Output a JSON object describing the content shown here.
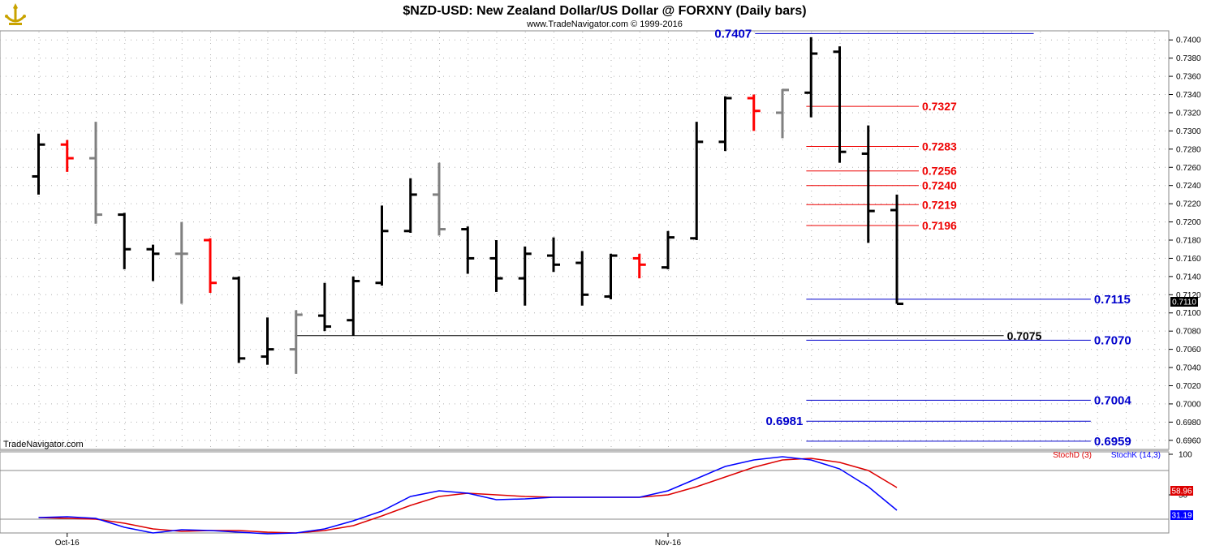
{
  "header": {
    "title": "$NZD-USD:  New Zealand Dollar/US Dollar @ FORXNY  (Daily bars)",
    "copyright": "www.TradeNavigator.com © 1999-2016"
  },
  "watermark": "TradeNavigator.com",
  "colors": {
    "black_bar": "#000000",
    "gray_bar": "#808080",
    "red_bar": "#ff0000",
    "blue_level": "#0000cc",
    "red_level": "#ee0000",
    "grid": "#b0b0b0",
    "stoch_k": "#0000ff",
    "stoch_d": "#dd0000",
    "current_price_bg": "#000000",
    "stoch_d_badge": "#dd0000",
    "stoch_k_badge": "#0000ff"
  },
  "chart_data": {
    "type": "ohlc",
    "y_axis": {
      "min": 0.695,
      "max": 0.741,
      "ticks": [
        "0.6960",
        "0.6980",
        "0.7000",
        "0.7020",
        "0.7040",
        "0.7060",
        "0.7080",
        "0.7100",
        "0.7120",
        "0.7140",
        "0.7160",
        "0.7180",
        "0.7200",
        "0.7220",
        "0.7240",
        "0.7260",
        "0.7280",
        "0.7300",
        "0.7320",
        "0.7340",
        "0.7360",
        "0.7380",
        "0.7400"
      ]
    },
    "x_labels": [
      {
        "label": "Oct-16",
        "bar": 1
      },
      {
        "label": "Nov-16",
        "bar": 22
      }
    ],
    "current_price": "0.7110",
    "bars": [
      {
        "o": 0.725,
        "h": 0.7297,
        "l": 0.723,
        "c": 0.7285,
        "color": "black"
      },
      {
        "o": 0.7285,
        "h": 0.729,
        "l": 0.7255,
        "c": 0.727,
        "color": "red"
      },
      {
        "o": 0.727,
        "h": 0.731,
        "l": 0.7198,
        "c": 0.7208,
        "color": "gray"
      },
      {
        "o": 0.7208,
        "h": 0.721,
        "l": 0.7148,
        "c": 0.717,
        "color": "black"
      },
      {
        "o": 0.717,
        "h": 0.7175,
        "l": 0.7135,
        "c": 0.7165,
        "color": "black"
      },
      {
        "o": 0.7165,
        "h": 0.72,
        "l": 0.711,
        "c": 0.7165,
        "color": "gray"
      },
      {
        "o": 0.718,
        "h": 0.7182,
        "l": 0.7122,
        "c": 0.7133,
        "color": "red"
      },
      {
        "o": 0.7138,
        "h": 0.714,
        "l": 0.7045,
        "c": 0.705,
        "color": "black"
      },
      {
        "o": 0.7052,
        "h": 0.7095,
        "l": 0.7043,
        "c": 0.706,
        "color": "black"
      },
      {
        "o": 0.706,
        "h": 0.7103,
        "l": 0.7033,
        "c": 0.7098,
        "color": "gray"
      },
      {
        "o": 0.7097,
        "h": 0.7133,
        "l": 0.708,
        "c": 0.7085,
        "color": "black"
      },
      {
        "o": 0.7092,
        "h": 0.714,
        "l": 0.7075,
        "c": 0.7135,
        "color": "black"
      },
      {
        "o": 0.7133,
        "h": 0.7218,
        "l": 0.713,
        "c": 0.719,
        "color": "black"
      },
      {
        "o": 0.719,
        "h": 0.7248,
        "l": 0.7188,
        "c": 0.723,
        "color": "black"
      },
      {
        "o": 0.723,
        "h": 0.7265,
        "l": 0.7185,
        "c": 0.7192,
        "color": "gray"
      },
      {
        "o": 0.7192,
        "h": 0.7195,
        "l": 0.7143,
        "c": 0.716,
        "color": "black"
      },
      {
        "o": 0.716,
        "h": 0.718,
        "l": 0.7123,
        "c": 0.7138,
        "color": "black"
      },
      {
        "o": 0.7138,
        "h": 0.7173,
        "l": 0.7108,
        "c": 0.7165,
        "color": "black"
      },
      {
        "o": 0.7163,
        "h": 0.7183,
        "l": 0.7145,
        "c": 0.7153,
        "color": "black"
      },
      {
        "o": 0.7155,
        "h": 0.7168,
        "l": 0.7108,
        "c": 0.712,
        "color": "black"
      },
      {
        "o": 0.7118,
        "h": 0.7165,
        "l": 0.7115,
        "c": 0.7163,
        "color": "black"
      },
      {
        "o": 0.716,
        "h": 0.7165,
        "l": 0.7138,
        "c": 0.7153,
        "color": "red"
      },
      {
        "o": 0.715,
        "h": 0.719,
        "l": 0.7148,
        "c": 0.7183,
        "color": "black"
      },
      {
        "o": 0.7182,
        "h": 0.731,
        "l": 0.718,
        "c": 0.7288,
        "color": "black"
      },
      {
        "o": 0.7288,
        "h": 0.7338,
        "l": 0.7278,
        "c": 0.7336,
        "color": "black"
      },
      {
        "o": 0.7336,
        "h": 0.734,
        "l": 0.73,
        "c": 0.7322,
        "color": "red"
      },
      {
        "o": 0.732,
        "h": 0.7346,
        "l": 0.7292,
        "c": 0.7345,
        "color": "gray"
      },
      {
        "o": 0.7342,
        "h": 0.7403,
        "l": 0.7315,
        "c": 0.7385,
        "color": "black"
      },
      {
        "o": 0.7387,
        "h": 0.7393,
        "l": 0.7265,
        "c": 0.7277,
        "color": "black"
      },
      {
        "o": 0.7275,
        "h": 0.7306,
        "l": 0.7177,
        "c": 0.7212,
        "color": "black"
      },
      {
        "o": 0.7213,
        "h": 0.723,
        "l": 0.711,
        "c": 0.711,
        "color": "black"
      }
    ],
    "levels": [
      {
        "label": "0.7407",
        "value": 0.7407,
        "color": "blue",
        "x1": 0.6235,
        "x2": 0.8536,
        "label_side": "left"
      },
      {
        "label": "0.7327",
        "value": 0.7327,
        "color": "red",
        "x1": 0.6658,
        "x2": 0.7587,
        "label_side": "right"
      },
      {
        "label": "0.7283",
        "value": 0.7283,
        "color": "red",
        "x1": 0.6658,
        "x2": 0.7587,
        "label_side": "right"
      },
      {
        "label": "0.7256",
        "value": 0.7256,
        "color": "red",
        "x1": 0.6658,
        "x2": 0.7587,
        "label_side": "right"
      },
      {
        "label": "0.7240",
        "value": 0.724,
        "color": "red",
        "x1": 0.6658,
        "x2": 0.7587,
        "label_side": "right"
      },
      {
        "label": "0.7219",
        "value": 0.7219,
        "color": "red",
        "x1": 0.6658,
        "x2": 0.7587,
        "label_side": "right"
      },
      {
        "label": "0.7196",
        "value": 0.7196,
        "color": "red",
        "x1": 0.6658,
        "x2": 0.7587,
        "label_side": "right"
      },
      {
        "label": "0.7115",
        "value": 0.7115,
        "color": "blue",
        "x1": 0.6658,
        "x2": 0.9007,
        "label_side": "right"
      },
      {
        "label": "0.7075",
        "value": 0.7075,
        "color": "black",
        "x1": 0.2435,
        "x2": 0.8288,
        "label_side": "right"
      },
      {
        "label": "0.7070",
        "value": 0.707,
        "color": "blue",
        "x1": 0.6658,
        "x2": 0.9007,
        "label_side": "right"
      },
      {
        "label": "0.7004",
        "value": 0.7004,
        "color": "blue",
        "x1": 0.6658,
        "x2": 0.9007,
        "label_side": "right"
      },
      {
        "label": "0.6981",
        "value": 0.6981,
        "color": "blue",
        "x1": 0.6658,
        "x2": 0.9007,
        "label_side": "left"
      },
      {
        "label": "0.6959",
        "value": 0.6959,
        "color": "blue",
        "x1": 0.6658,
        "x2": 0.9007,
        "label_side": "right"
      }
    ],
    "stochastic": {
      "legend_d": "StochD (3)",
      "legend_k": "StochK (14,3)",
      "ticks": [
        "100",
        "50"
      ],
      "y_min": 0,
      "y_max": 100,
      "k_value_label": "31.19",
      "d_value_label": "58.96",
      "k": [
        22,
        23,
        21,
        10,
        3,
        7,
        6,
        4,
        2,
        3,
        8,
        18,
        30,
        48,
        55,
        52,
        44,
        45,
        47,
        47,
        47,
        47,
        55,
        70,
        85,
        93,
        97,
        93,
        82,
        60,
        31
      ],
      "d": [
        22,
        21,
        20,
        15,
        8,
        5,
        6,
        6,
        4,
        3,
        6,
        12,
        24,
        37,
        48,
        52,
        50,
        48,
        47,
        47,
        47,
        47,
        50,
        60,
        72,
        84,
        93,
        95,
        90,
        80,
        59
      ]
    }
  }
}
